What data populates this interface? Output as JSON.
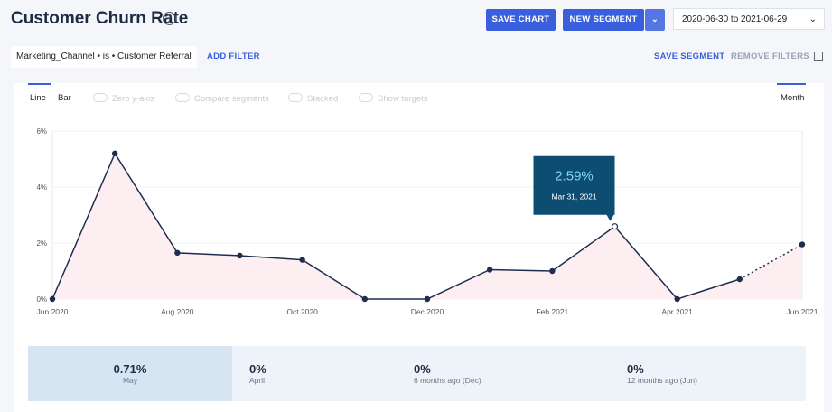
{
  "header": {
    "title": "Customer Churn Rate",
    "save_chart": "SAVE CHART",
    "new_segment": "NEW SEGMENT",
    "date_range": "2020-06-30 to 2021-06-29"
  },
  "filters": {
    "filter": "Marketing_Channel • is • Customer Referral",
    "add_filter": "ADD FILTER",
    "save_segment": "SAVE SEGMENT",
    "remove_filters": "REMOVE FILTERS"
  },
  "toolbar": {
    "line": "Line",
    "bar": "Bar",
    "toggles": [
      "Zero y-axis",
      "Compare segments",
      "Stacked",
      "Show targets"
    ],
    "period": "Month"
  },
  "chart_data": {
    "type": "line",
    "categories": [
      "Jun 2020",
      null,
      "Aug 2020",
      null,
      "Oct 2020",
      null,
      "Dec 2020",
      null,
      "Feb 2021",
      null,
      "Apr 2021",
      null,
      "Jun 2021"
    ],
    "values": [
      0,
      5.2,
      1.65,
      1.55,
      1.4,
      0,
      0,
      1.05,
      1.0,
      2.59,
      0,
      0.71,
      1.95
    ],
    "value_labels": [
      null,
      null,
      null,
      null,
      null,
      null,
      null,
      null,
      null,
      "2.59%",
      null,
      null,
      null
    ],
    "tooltip_date": "Mar 31, 2021",
    "color": "#1f2d4e",
    "fill": "#fdeef1",
    "ylim": [
      0,
      6
    ],
    "yticks": [
      {
        "value": 0,
        "label": "0%"
      },
      {
        "value": 2,
        "label": "2%"
      },
      {
        "value": 4,
        "label": "4%"
      },
      {
        "value": 6,
        "label": "6%"
      }
    ],
    "grid": true
  },
  "summary": [
    {
      "value": "0.71%",
      "label": "May"
    },
    {
      "value": "0%",
      "label": "April"
    },
    {
      "value": "0%",
      "label": "6 months ago (Dec)"
    },
    {
      "value": "0%",
      "label": "12 months ago (Jun)"
    }
  ]
}
